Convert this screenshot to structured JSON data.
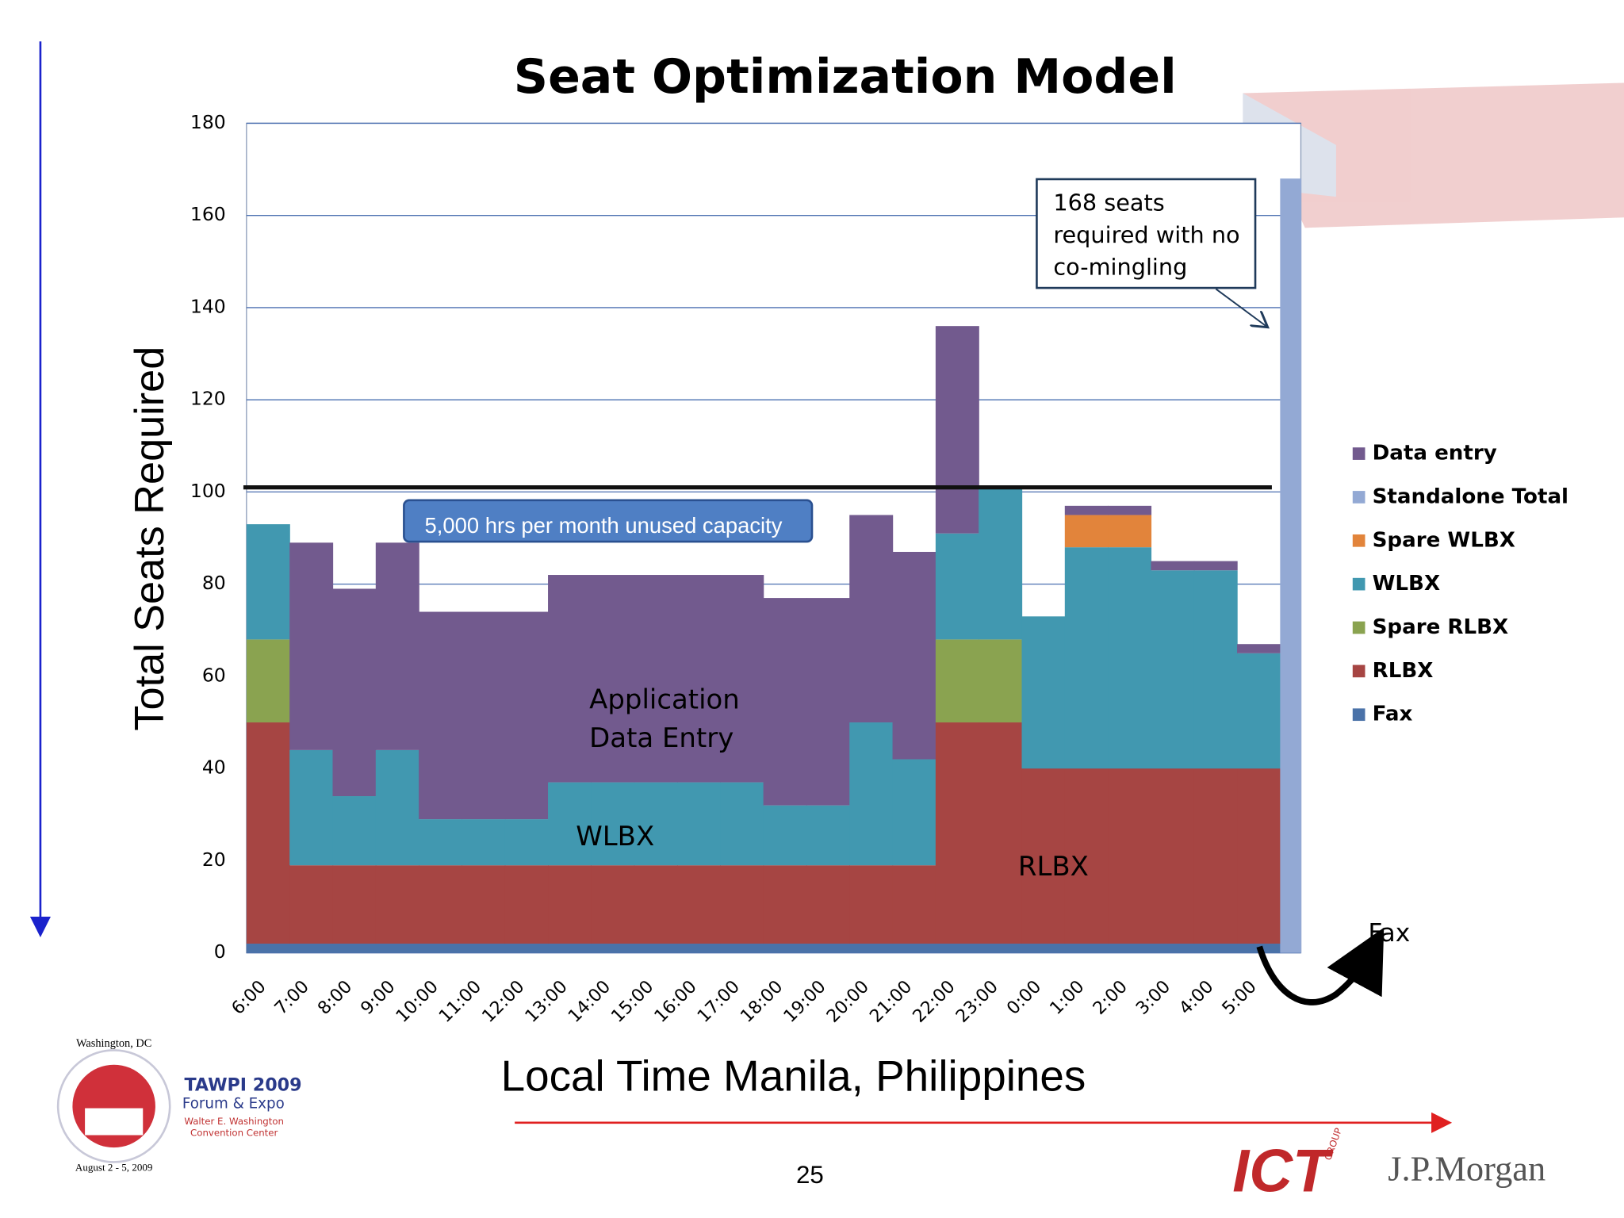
{
  "chart_data": {
    "type": "stacked_step_area",
    "title": "Seat Optimization Model",
    "y_label": "Total Seats Required",
    "x_label": "Local Time Manila, Philippines",
    "categories": [
      "6:00",
      "7:00",
      "8:00",
      "9:00",
      "10:00",
      "11:00",
      "12:00",
      "13:00",
      "14:00",
      "15:00",
      "16:00",
      "17:00",
      "18:00",
      "19:00",
      "20:00",
      "21:00",
      "22:00",
      "23:00",
      "0:00",
      "1:00",
      "2:00",
      "3:00",
      "4:00",
      "5:00",
      null
    ],
    "series": [
      {
        "name": "Data entry",
        "color": "#725a8e",
        "values": [
          0,
          45,
          45,
          45,
          45,
          45,
          45,
          45,
          45,
          45,
          45,
          45,
          45,
          45,
          45,
          45,
          45,
          0,
          0,
          2,
          2,
          2,
          2,
          2,
          null
        ]
      },
      {
        "name": "Standalone Total",
        "color": "#93a9d4",
        "values": [
          null,
          null,
          null,
          null,
          null,
          null,
          null,
          null,
          null,
          null,
          null,
          null,
          null,
          null,
          null,
          null,
          null,
          null,
          null,
          null,
          null,
          null,
          null,
          null,
          168
        ]
      },
      {
        "name": "Spare WLBX",
        "color": "#e2843b",
        "values": [
          0,
          0,
          0,
          0,
          0,
          0,
          0,
          0,
          0,
          0,
          0,
          0,
          0,
          0,
          0,
          0,
          0,
          0,
          0,
          7,
          7,
          0,
          0,
          0,
          null
        ]
      },
      {
        "name": "WLBX",
        "color": "#4198b0",
        "values": [
          25,
          25,
          15,
          25,
          10,
          10,
          10,
          18,
          18,
          18,
          18,
          18,
          13,
          13,
          31,
          23,
          23,
          33,
          33,
          48,
          48,
          43,
          43,
          25,
          null
        ]
      },
      {
        "name": "Spare RLBX",
        "color": "#8aa350",
        "values": [
          18,
          0,
          0,
          0,
          0,
          0,
          0,
          0,
          0,
          0,
          0,
          0,
          0,
          0,
          0,
          0,
          18,
          18,
          0,
          0,
          0,
          0,
          0,
          0,
          null
        ]
      },
      {
        "name": "RLBX",
        "color": "#a64543",
        "values": [
          48,
          17,
          17,
          17,
          17,
          17,
          17,
          17,
          17,
          17,
          17,
          17,
          17,
          17,
          17,
          17,
          48,
          48,
          38,
          38,
          38,
          38,
          38,
          38,
          null
        ]
      },
      {
        "name": "Fax",
        "color": "#4a72a8",
        "values": [
          2,
          2,
          2,
          2,
          2,
          2,
          2,
          2,
          2,
          2,
          2,
          2,
          2,
          2,
          2,
          2,
          2,
          2,
          2,
          2,
          2,
          2,
          2,
          2,
          null
        ]
      }
    ],
    "ylim": [
      0,
      180
    ],
    "yticks": [
      0,
      20,
      40,
      60,
      80,
      100,
      120,
      140,
      160,
      180
    ],
    "grid": true,
    "reference_line": 101,
    "annotations": {
      "standalone_note": [
        "168 seats",
        "required with no",
        "co-mingling"
      ],
      "capacity_note": "5,000 hrs per month unused capacity",
      "data_entry_label": [
        "Application",
        "Data Entry"
      ],
      "wlbx_label": "WLBX",
      "rlbx_label": "RLBX",
      "fax_label": "Fax"
    }
  },
  "footer": {
    "page_number": "25",
    "event_ring_top": "Washington, DC",
    "event_ring_bottom": "August 2 - 5, 2009",
    "event_name": "TAWPI 2009",
    "event_sub": "Forum & Expo",
    "venue_1": "Walter E. Washington",
    "venue_2": "Convention Center",
    "logo_ict": "ICT",
    "logo_ict_group": "GROUP",
    "logo_jpm": "J.P.Morgan"
  }
}
